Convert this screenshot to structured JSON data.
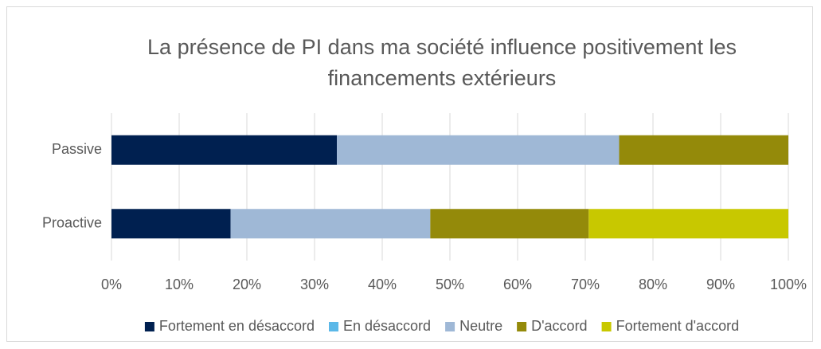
{
  "chart_data": {
    "type": "stacked_bar_horizontal",
    "title": "La présence de PI dans ma société influence positivement les financements extérieurs",
    "categories": [
      "Passive",
      "Proactive"
    ],
    "series": [
      {
        "name": "Fortement en désaccord",
        "color": "#002050",
        "values": [
          33.3,
          17.6
        ]
      },
      {
        "name": "En désaccord",
        "color": "#5bb8e8",
        "values": [
          0,
          0
        ]
      },
      {
        "name": "Neutre",
        "color": "#9fb8d6",
        "values": [
          41.7,
          29.5
        ]
      },
      {
        "name": "D'accord",
        "color": "#948a0a",
        "values": [
          25,
          23.4
        ]
      },
      {
        "name": "Fortement d'accord",
        "color": "#c8c800",
        "values": [
          0,
          29.5
        ]
      }
    ],
    "xlim": [
      0,
      100
    ],
    "xticks": [
      {
        "value": 0,
        "label": "0%"
      },
      {
        "value": 10,
        "label": "10%"
      },
      {
        "value": 20,
        "label": "20%"
      },
      {
        "value": 30,
        "label": "30%"
      },
      {
        "value": 40,
        "label": "40%"
      },
      {
        "value": 50,
        "label": "50%"
      },
      {
        "value": 60,
        "label": "60%"
      },
      {
        "value": 70,
        "label": "70%"
      },
      {
        "value": 80,
        "label": "80%"
      },
      {
        "value": 90,
        "label": "90%"
      },
      {
        "value": 100,
        "label": "100%"
      }
    ],
    "grid": true,
    "legend": "bottom"
  }
}
